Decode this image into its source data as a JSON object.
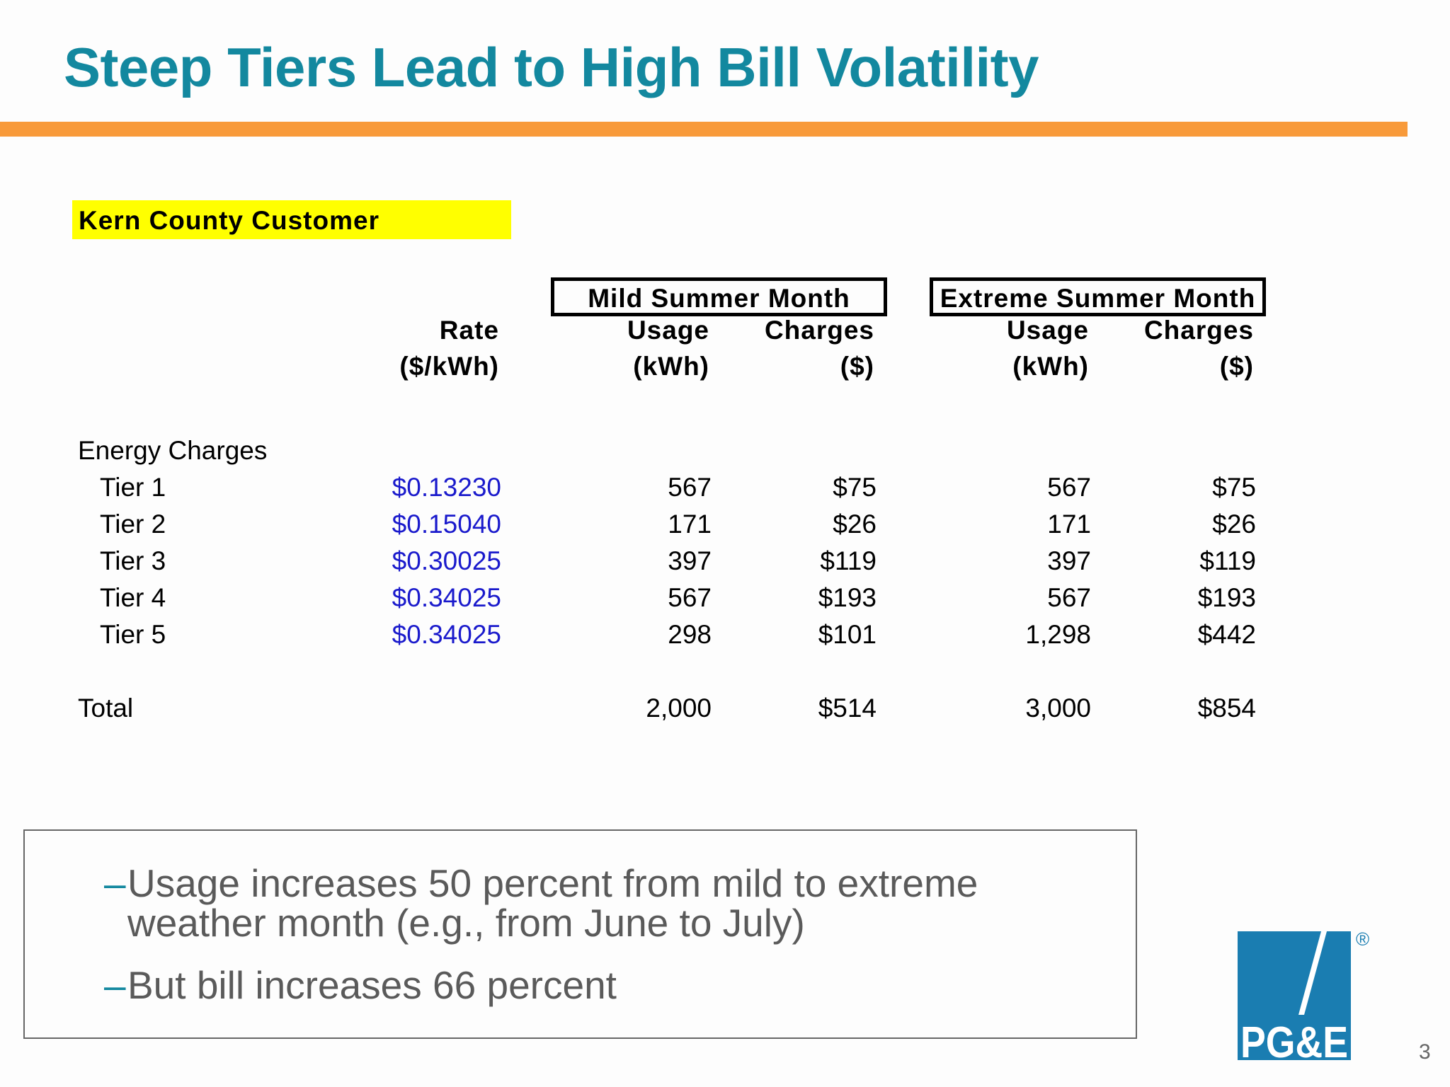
{
  "title": "Steep Tiers Lead to High Bill Volatility",
  "customer_label": "Kern County Customer",
  "groups": {
    "mild": "Mild Summer Month",
    "extreme": "Extreme Summer Month"
  },
  "headers": {
    "rate": "Rate",
    "rate_unit": "($/kWh)",
    "usage": "Usage",
    "usage_unit": "(kWh)",
    "charges": "Charges",
    "charges_unit": "($)"
  },
  "section_label": "Energy Charges",
  "rows": [
    {
      "label": "Tier 1",
      "rate": "$0.13230",
      "mild_usage": "567",
      "mild_charges": "$75",
      "ext_usage": "567",
      "ext_charges": "$75"
    },
    {
      "label": "Tier 2",
      "rate": "$0.15040",
      "mild_usage": "171",
      "mild_charges": "$26",
      "ext_usage": "171",
      "ext_charges": "$26"
    },
    {
      "label": "Tier 3",
      "rate": "$0.30025",
      "mild_usage": "397",
      "mild_charges": "$119",
      "ext_usage": "397",
      "ext_charges": "$119"
    },
    {
      "label": "Tier 4",
      "rate": "$0.34025",
      "mild_usage": "567",
      "mild_charges": "$193",
      "ext_usage": "567",
      "ext_charges": "$193"
    },
    {
      "label": "Tier 5",
      "rate": "$0.34025",
      "mild_usage": "298",
      "mild_charges": "$101",
      "ext_usage": "1,298",
      "ext_charges": "$442"
    }
  ],
  "total": {
    "label": "Total",
    "mild_usage": "2,000",
    "mild_charges": "$514",
    "ext_usage": "3,000",
    "ext_charges": "$854"
  },
  "bullets": {
    "dash": "–",
    "b1_line1": "Usage increases 50 percent from mild to extreme",
    "b1_line2": "weather month (e.g., from June to July)",
    "b2": "But bill increases 66 percent"
  },
  "logo": {
    "text": "PG&E",
    "registered": "®",
    "colors": {
      "blue": "#1a7db1",
      "orange": "#f89a3a"
    }
  },
  "page_number": "3"
}
